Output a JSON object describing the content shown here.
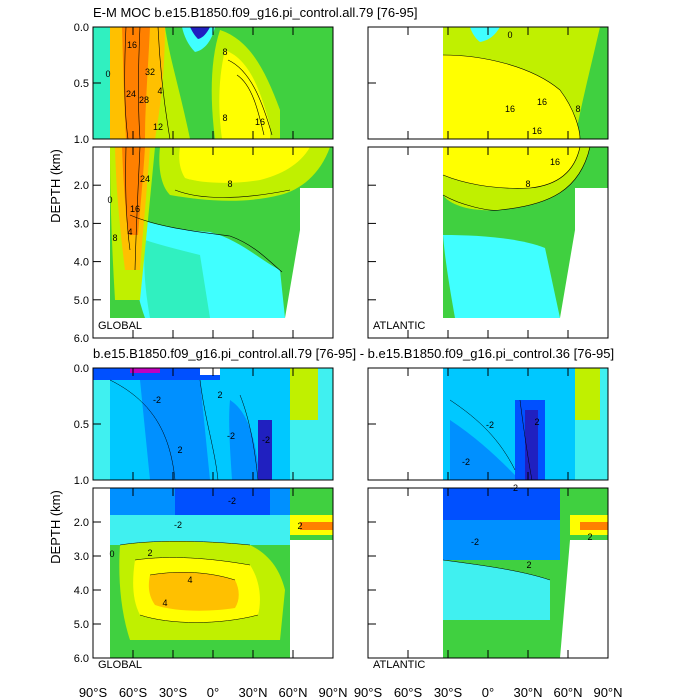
{
  "figure": {
    "title_top": "E-M MOC  b.e15.B1850.f09_g16.pi_control.all.79 [76-95]",
    "title_bottom": "b.e15.B1850.f09_g16.pi_control.all.79 [76-95] - b.e15.B1850.f09_g16.pi_control.36 [76-95]",
    "ylabel": "DEPTH (km)"
  },
  "chart_data": [
    {
      "type": "contour",
      "id": "top-global",
      "label": "GLOBAL",
      "x_ticks": [
        "90°S",
        "60°S",
        "30°S",
        "0°",
        "30°N",
        "60°N",
        "90°N"
      ],
      "y_ticks_upper": [
        "0.0",
        "0.5",
        "1.0"
      ],
      "y_ticks_lower": [
        "2.0",
        "3.0",
        "4.0",
        "5.0",
        "6.0"
      ],
      "ylim_upper": [
        0,
        1
      ],
      "ylim_lower": [
        1,
        6
      ],
      "contour_labels": [
        "16",
        "32",
        "24",
        "28",
        "4",
        "8",
        "12",
        "0",
        "8",
        "16",
        "24",
        "16",
        "8",
        "0",
        "4",
        "8"
      ],
      "colors": [
        "#ff8000",
        "#ffc000",
        "#ffff00",
        "#c0f000",
        "#40d040",
        "#00e060",
        "#30f0c0",
        "#40ffff",
        "#20c0ff"
      ]
    },
    {
      "type": "contour",
      "id": "top-atlantic",
      "label": "ATLANTIC",
      "contour_labels": [
        "16",
        "16",
        "16",
        "8",
        "16",
        "8",
        "0"
      ]
    },
    {
      "type": "contour",
      "id": "bottom-global",
      "label": "GLOBAL",
      "x_ticks": [
        "90°S",
        "60°S",
        "30°S",
        "0°",
        "30°N",
        "60°N",
        "90°N"
      ],
      "y_ticks_upper": [
        "0.0",
        "0.5",
        "1.0"
      ],
      "y_ticks_lower": [
        "2.0",
        "3.0",
        "4.0",
        "5.0",
        "6.0"
      ],
      "ylim_upper": [
        0,
        1
      ],
      "ylim_lower": [
        1,
        6
      ],
      "contour_labels": [
        "-2",
        "-2",
        "-2",
        "2",
        "2",
        "-2",
        "0",
        "2",
        "4",
        "-2",
        "4",
        "2"
      ],
      "colors": [
        "#2020c0",
        "#0050ff",
        "#0090ff",
        "#00c8ff",
        "#40f0f0",
        "#40e0a0",
        "#40d040",
        "#c0f000",
        "#ffff00",
        "#ffc000",
        "#ff8000"
      ]
    },
    {
      "type": "contour",
      "id": "bottom-atlantic",
      "label": "ATLANTIC",
      "contour_labels": [
        "-2",
        "-2",
        "-2",
        "-2",
        "2",
        "2",
        "2"
      ]
    }
  ]
}
